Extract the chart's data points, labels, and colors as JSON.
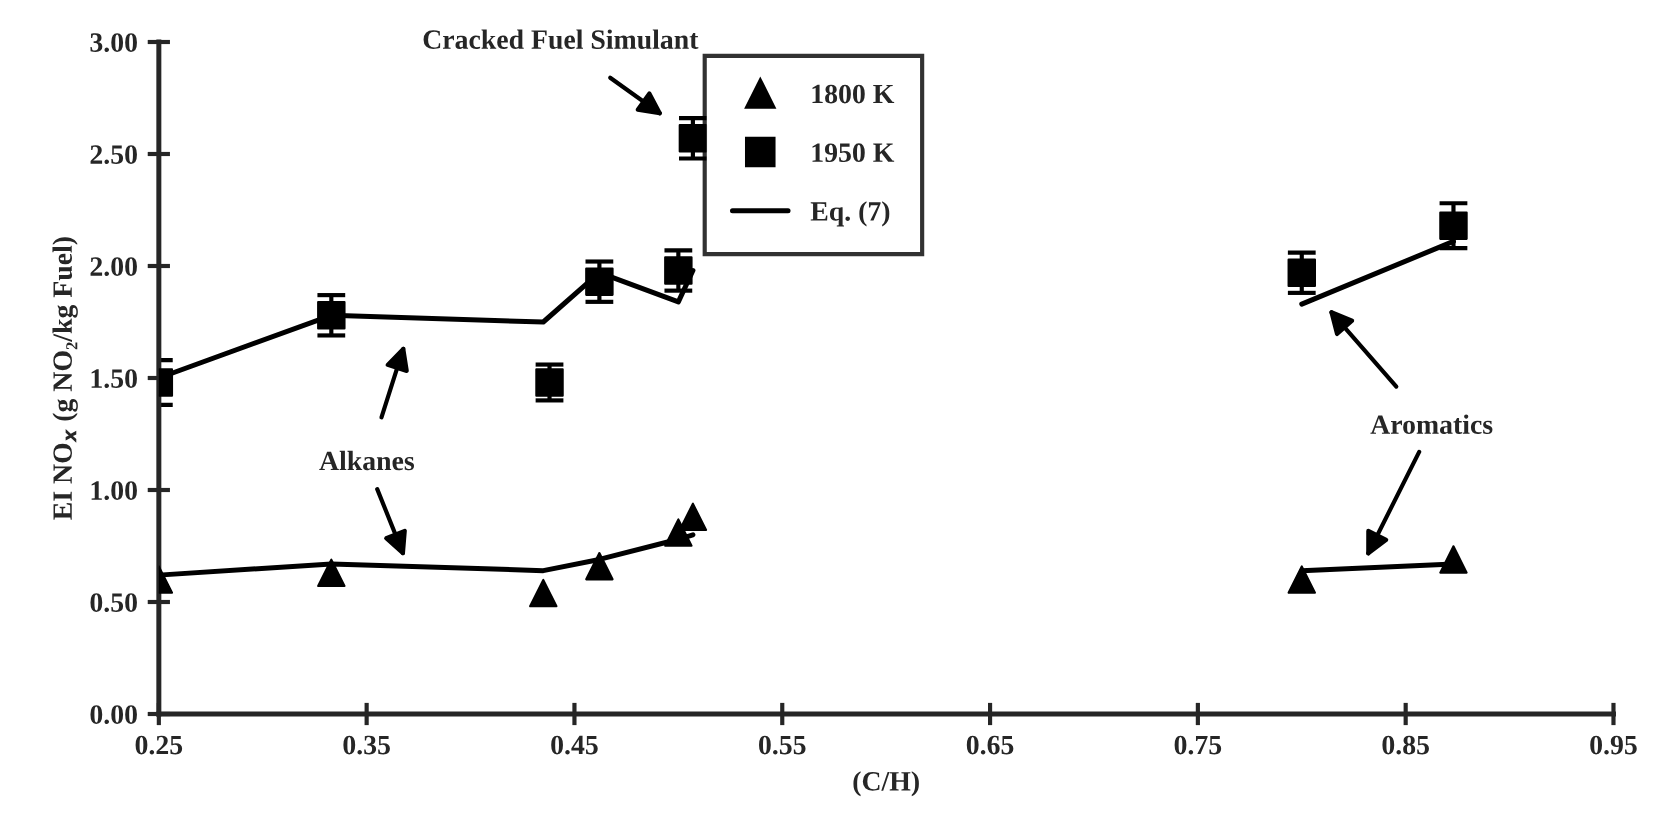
{
  "chart_data": {
    "type": "scatter",
    "xlabel": "(C/H)",
    "ylabel": "EI NO$_{x}$ (g NO₂/kg Fuel)",
    "xlim": [
      0.25,
      0.95
    ],
    "xticks": [
      0.25,
      0.35,
      0.45,
      0.55,
      0.65,
      0.75,
      0.85,
      0.95
    ],
    "ylim": [
      0,
      3
    ],
    "yticks": [
      {
        "value": 0,
        "label": "0.00"
      },
      {
        "value": 0.5,
        "label": "0.50"
      },
      {
        "value": 1,
        "label": "1.00"
      },
      {
        "value": 1.5,
        "label": "1.50"
      },
      {
        "value": 2,
        "label": "2.00"
      },
      {
        "value": 2.5,
        "label": "2.50"
      },
      {
        "value": 3,
        "label": "3.00"
      }
    ],
    "grid": false,
    "legend": "top",
    "line_style": "solid",
    "series": [
      {
        "name": "1800 K",
        "marker": "triangle",
        "color": "#000000",
        "x": [
          0.25,
          0.333,
          0.435,
          0.462,
          0.5,
          0.507,
          0.8,
          0.873
        ],
        "values": [
          0.6,
          0.63,
          0.54,
          0.66,
          0.81,
          0.88,
          0.6,
          0.69
        ]
      },
      {
        "name": "1950 K",
        "marker": "square",
        "color": "#000000",
        "x": [
          0.25,
          0.333,
          0.438,
          0.462,
          0.5,
          0.507,
          0.8,
          0.873
        ],
        "values": [
          1.48,
          1.78,
          1.48,
          1.93,
          1.98,
          2.57,
          1.97,
          2.18
        ],
        "errors": [
          0.1,
          0.09,
          0.08,
          0.09,
          0.09,
          0.09,
          0.09,
          0.1
        ]
      },
      {
        "name": "Eq. (7)",
        "type": "line",
        "color": "#000000",
        "x": [
          0.25,
          0.333,
          0.435,
          0.462,
          0.5,
          0.507,
          0.65,
          0.8,
          0.873
        ],
        "values": [
          1.5,
          1.78,
          1.75,
          1.97,
          1.84,
          1.98,
          null,
          1.83,
          2.11
        ]
      },
      {
        "type": "line",
        "color": "#000000",
        "x": [
          0.25,
          0.333,
          0.435,
          0.462,
          0.5,
          0.507,
          0.65,
          0.8,
          0.873
        ],
        "values": [
          0.62,
          0.67,
          0.64,
          0.69,
          0.78,
          0.8,
          null,
          0.64,
          0.67
        ]
      }
    ],
    "annotations": [
      "Cracked Fuel Simulant",
      "Alkanes",
      "Aromatics"
    ]
  }
}
